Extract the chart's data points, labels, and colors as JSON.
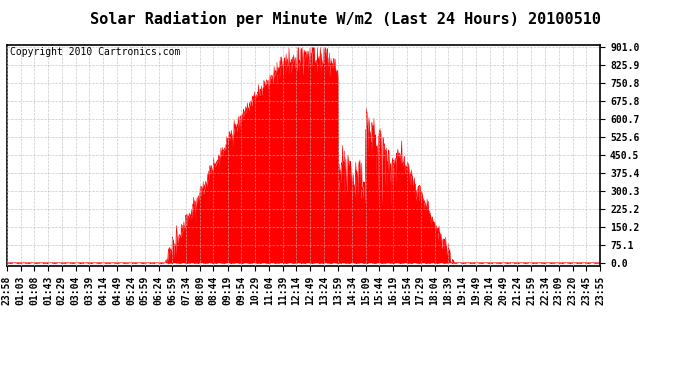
{
  "title": "Solar Radiation per Minute W/m2 (Last 24 Hours) 20100510",
  "copyright": "Copyright 2010 Cartronics.com",
  "yticks": [
    0.0,
    75.1,
    150.2,
    225.2,
    300.3,
    375.4,
    450.5,
    525.6,
    600.7,
    675.8,
    750.8,
    825.9,
    901.0
  ],
  "ymax": 901.0,
  "fill_color": "#FF0000",
  "line_color": "#FF0000",
  "dashed_line_color": "#FF0000",
  "grid_color": "#BBBBBB",
  "bg_color": "#FFFFFF",
  "plot_bg_color": "#FFFFFF",
  "title_fontsize": 11,
  "copyright_fontsize": 7,
  "tick_fontsize": 7,
  "xtick_labels": [
    "23:58",
    "01:03",
    "01:08",
    "01:43",
    "02:29",
    "03:04",
    "03:39",
    "04:14",
    "04:49",
    "05:24",
    "05:59",
    "06:24",
    "06:59",
    "07:34",
    "08:09",
    "08:44",
    "09:19",
    "09:54",
    "10:29",
    "11:04",
    "11:39",
    "12:14",
    "12:49",
    "13:24",
    "13:59",
    "14:34",
    "15:09",
    "15:44",
    "16:19",
    "16:54",
    "17:29",
    "18:04",
    "18:39",
    "19:14",
    "19:49",
    "20:14",
    "20:49",
    "21:24",
    "21:59",
    "22:34",
    "23:09",
    "23:20",
    "23:45",
    "23:55"
  ]
}
